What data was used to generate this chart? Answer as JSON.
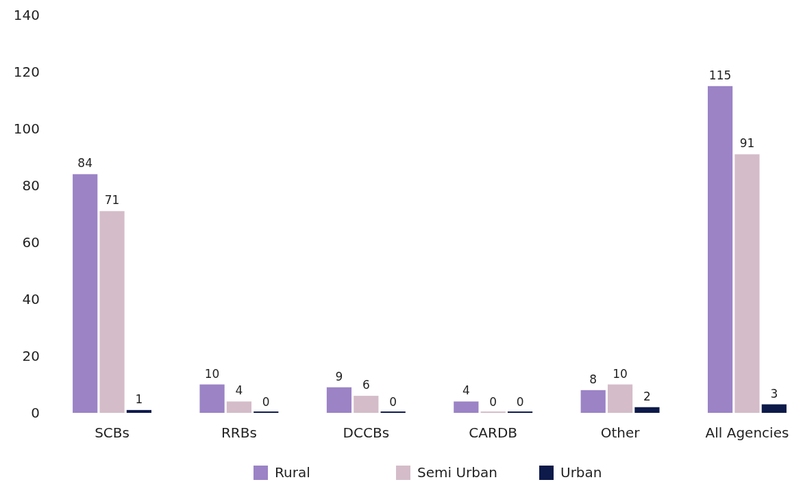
{
  "chart_data": {
    "type": "bar",
    "categories": [
      "SCBs",
      "RRBs",
      "DCCBs",
      "CARDB",
      "Other",
      "All Agencies"
    ],
    "series": [
      {
        "name": "Rural",
        "color": "#9b83c6",
        "values": [
          84,
          10,
          9,
          4,
          8,
          115
        ]
      },
      {
        "name": "Semi Urban",
        "color": "#d4bcc8",
        "values": [
          71,
          4,
          6,
          0,
          10,
          91
        ]
      },
      {
        "name": "Urban",
        "color": "#0d1a4a",
        "values": [
          1,
          0,
          0,
          0,
          2,
          3
        ]
      }
    ],
    "ylim": [
      0,
      140
    ],
    "yticks": [
      0,
      20,
      40,
      60,
      80,
      100,
      120,
      140
    ],
    "data_labels": true,
    "legend": "bottom",
    "grid": false
  }
}
